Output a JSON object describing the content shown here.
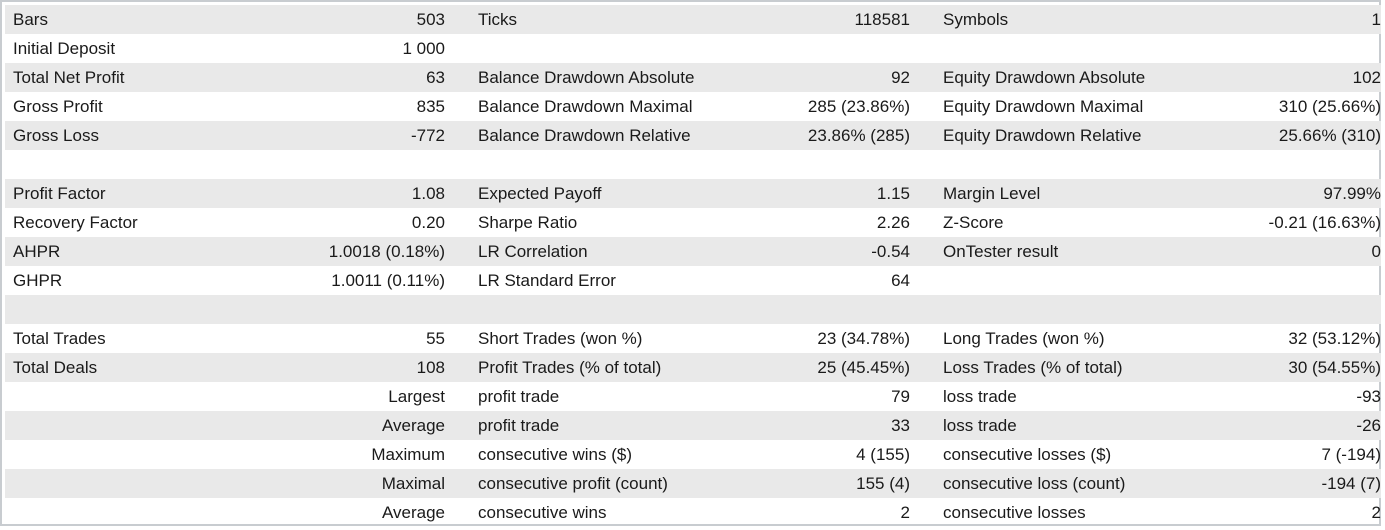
{
  "rows": [
    {
      "c1": "Bars",
      "c2": "503",
      "c3": "Ticks",
      "c4": "118581",
      "c5": "Symbols",
      "c6": "1"
    },
    {
      "c1": "Initial Deposit",
      "c2": "1 000",
      "c3": "",
      "c4": "",
      "c5": "",
      "c6": ""
    },
    {
      "c1": "Total Net Profit",
      "c2": "63",
      "c3": "Balance Drawdown Absolute",
      "c4": "92",
      "c5": "Equity Drawdown Absolute",
      "c6": "102"
    },
    {
      "c1": "Gross Profit",
      "c2": "835",
      "c3": "Balance Drawdown Maximal",
      "c4": "285 (23.86%)",
      "c5": "Equity Drawdown Maximal",
      "c6": "310 (25.66%)"
    },
    {
      "c1": "Gross Loss",
      "c2": "-772",
      "c3": "Balance Drawdown Relative",
      "c4": "23.86% (285)",
      "c5": "Equity Drawdown Relative",
      "c6": "25.66% (310)"
    },
    {
      "c1": "",
      "c2": "",
      "c3": "",
      "c4": "",
      "c5": "",
      "c6": ""
    },
    {
      "c1": "Profit Factor",
      "c2": "1.08",
      "c3": "Expected Payoff",
      "c4": "1.15",
      "c5": "Margin Level",
      "c6": "97.99%"
    },
    {
      "c1": "Recovery Factor",
      "c2": "0.20",
      "c3": "Sharpe Ratio",
      "c4": "2.26",
      "c5": "Z-Score",
      "c6": "-0.21 (16.63%)"
    },
    {
      "c1": "AHPR",
      "c2": "1.0018 (0.18%)",
      "c3": "LR Correlation",
      "c4": "-0.54",
      "c5": "OnTester result",
      "c6": "0"
    },
    {
      "c1": "GHPR",
      "c2": "1.0011 (0.11%)",
      "c3": "LR Standard Error",
      "c4": "64",
      "c5": "",
      "c6": ""
    },
    {
      "c1": "",
      "c2": "",
      "c3": "",
      "c4": "",
      "c5": "",
      "c6": ""
    },
    {
      "c1": "Total Trades",
      "c2": "55",
      "c3": "Short Trades (won %)",
      "c4": "23 (34.78%)",
      "c5": "Long Trades (won %)",
      "c6": "32 (53.12%)"
    },
    {
      "c1": "Total Deals",
      "c2": "108",
      "c3": "Profit Trades (% of total)",
      "c4": "25 (45.45%)",
      "c5": "Loss Trades (% of total)",
      "c6": "30 (54.55%)"
    },
    {
      "c1r": "Largest",
      "c3": "profit trade",
      "c4": "79",
      "c5": "loss trade",
      "c6": "-93"
    },
    {
      "c1r": "Average",
      "c3": "profit trade",
      "c4": "33",
      "c5": "loss trade",
      "c6": "-26"
    },
    {
      "c1r": "Maximum",
      "c3": "consecutive wins ($)",
      "c4": "4 (155)",
      "c5": "consecutive losses ($)",
      "c6": "7 (-194)"
    },
    {
      "c1r": "Maximal",
      "c3": "consecutive profit (count)",
      "c4": "155 (4)",
      "c5": "consecutive loss (count)",
      "c6": "-194 (7)"
    },
    {
      "c1r": "Average",
      "c3": "consecutive wins",
      "c4": "2",
      "c5": "consecutive losses",
      "c6": "2"
    }
  ]
}
